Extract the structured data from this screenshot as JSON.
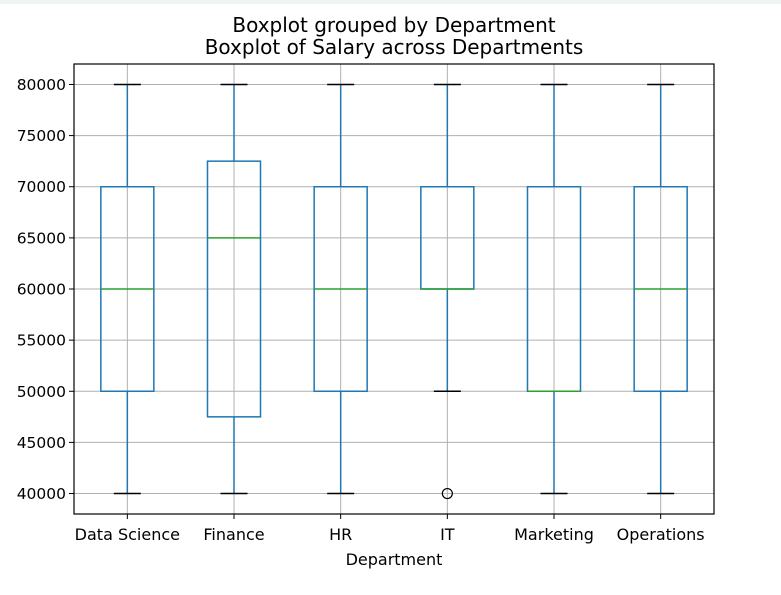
{
  "chart_data": {
    "type": "boxplot",
    "suptitle": "Boxplot grouped by Department",
    "title": "Boxplot of Salary across Departments",
    "xlabel": "Department",
    "ylabel": "",
    "ylim": [
      38000,
      82000
    ],
    "yticks": [
      40000,
      45000,
      50000,
      55000,
      60000,
      65000,
      70000,
      75000,
      80000
    ],
    "grid": true,
    "colors": {
      "box": "#1f77b4",
      "median": "#2ca02c",
      "whisker": "#1f77b4",
      "cap": "#000000",
      "grid": "#b0b0b0",
      "flier": "#000000"
    },
    "categories": [
      "Data Science",
      "Finance",
      "HR",
      "IT",
      "Marketing",
      "Operations"
    ],
    "boxes": [
      {
        "category": "Data Science",
        "whislo": 40000,
        "q1": 50000,
        "med": 60000,
        "q3": 70000,
        "whishi": 80000,
        "fliers": []
      },
      {
        "category": "Finance",
        "whislo": 40000,
        "q1": 47500,
        "med": 65000,
        "q3": 72500,
        "whishi": 80000,
        "fliers": []
      },
      {
        "category": "HR",
        "whislo": 40000,
        "q1": 50000,
        "med": 60000,
        "q3": 70000,
        "whishi": 80000,
        "fliers": []
      },
      {
        "category": "IT",
        "whislo": 50000,
        "q1": 60000,
        "med": 60000,
        "q3": 70000,
        "whishi": 80000,
        "fliers": [
          40000
        ]
      },
      {
        "category": "Marketing",
        "whislo": 40000,
        "q1": 50000,
        "med": 50000,
        "q3": 70000,
        "whishi": 80000,
        "fliers": []
      },
      {
        "category": "Operations",
        "whislo": 40000,
        "q1": 50000,
        "med": 60000,
        "q3": 70000,
        "whishi": 80000,
        "fliers": []
      }
    ]
  }
}
